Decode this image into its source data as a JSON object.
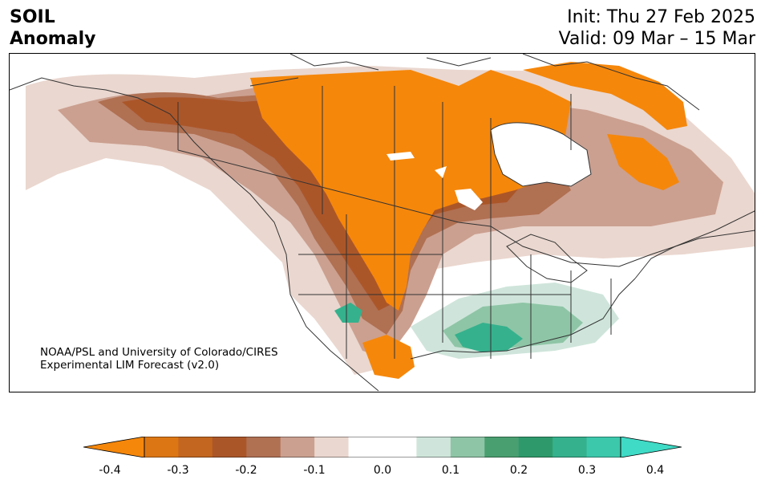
{
  "header": {
    "variable": "SOIL",
    "field": "Anomaly",
    "init": "Init: Thu 27 Feb 2025",
    "valid": "Valid: 09 Mar – 15 Mar"
  },
  "credit": {
    "line1": "NOAA/PSL and University of Colorado/CIRES",
    "line2": "Experimental LIM Forecast (v2.0)"
  },
  "colorbar": {
    "levels": [
      -0.4,
      -0.35,
      -0.3,
      -0.25,
      -0.2,
      -0.15,
      -0.1,
      -0.05,
      0.05,
      0.1,
      0.15,
      0.2,
      0.25,
      0.3,
      0.35,
      0.4
    ],
    "colors": [
      "#f5870b",
      "#dc7614",
      "#c3661f",
      "#ab5629",
      "#b07052",
      "#cba090",
      "#ead7cf",
      "#ffffff",
      "#ffffff",
      "#cfe5db",
      "#8ec5a6",
      "#4a9f70",
      "#2e9a6c",
      "#35b18d",
      "#3cc8ab",
      "#3fdbc6"
    ],
    "extend_low_color": "#f5870b",
    "extend_high_color": "#3fdbc6",
    "tick_labels": [
      "-0.4",
      "-0.3",
      "-0.2",
      "-0.1",
      "0.0",
      "0.1",
      "0.2",
      "0.3",
      "0.4"
    ]
  }
}
